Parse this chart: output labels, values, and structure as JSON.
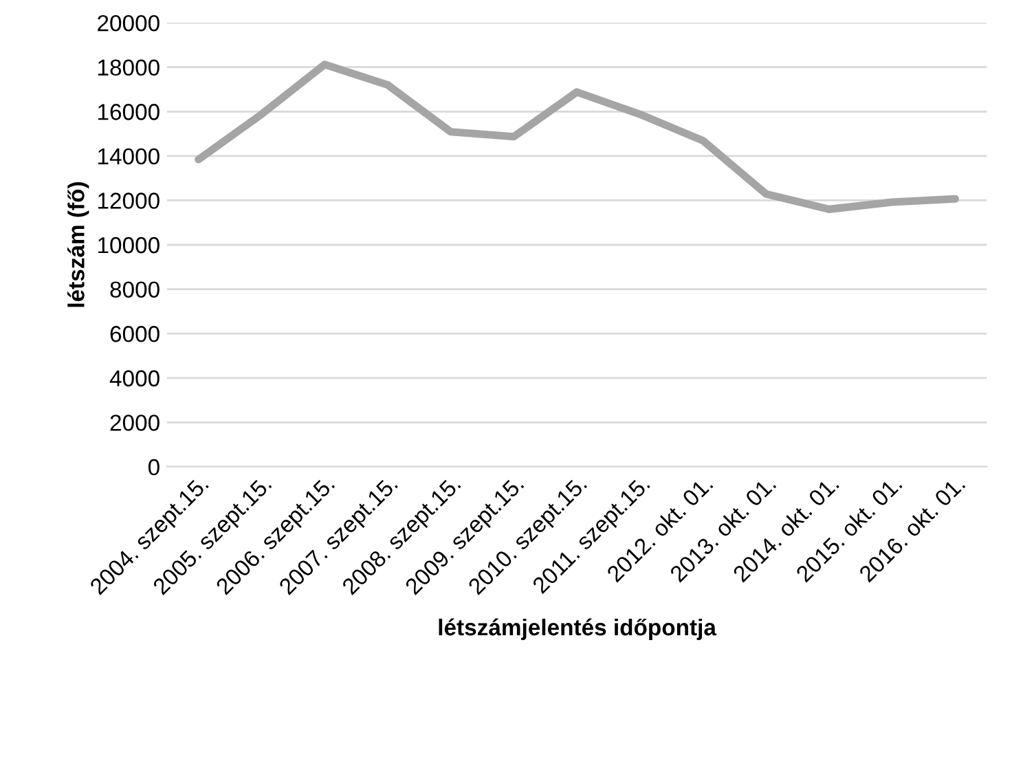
{
  "chart_data": {
    "type": "line",
    "xlabel": "létszámjelentés időpontja",
    "ylabel": "létszám (fő)",
    "categories": [
      "2004. szept.15.",
      "2005. szept.15.",
      "2006. szept.15.",
      "2007. szept.15.",
      "2008. szept.15.",
      "2009. szept.15.",
      "2010. szept.15.",
      "2011. szept.15.",
      "2012. okt. 01.",
      "2013. okt. 01.",
      "2014. okt. 01.",
      "2015. okt. 01.",
      "2016. okt. 01."
    ],
    "series": [
      {
        "color": "#a5a5a5",
        "values": [
          13840,
          15880,
          18120,
          17200,
          15090,
          14870,
          16880,
          15880,
          14690,
          12290,
          11600,
          11920,
          12070
        ]
      }
    ],
    "ylim": [
      0,
      20000
    ],
    "yticks": [
      0,
      2000,
      4000,
      6000,
      8000,
      10000,
      12000,
      14000,
      16000,
      18000,
      20000
    ],
    "grid": "y",
    "legend": false,
    "marker": "none",
    "line_style": "solid"
  }
}
